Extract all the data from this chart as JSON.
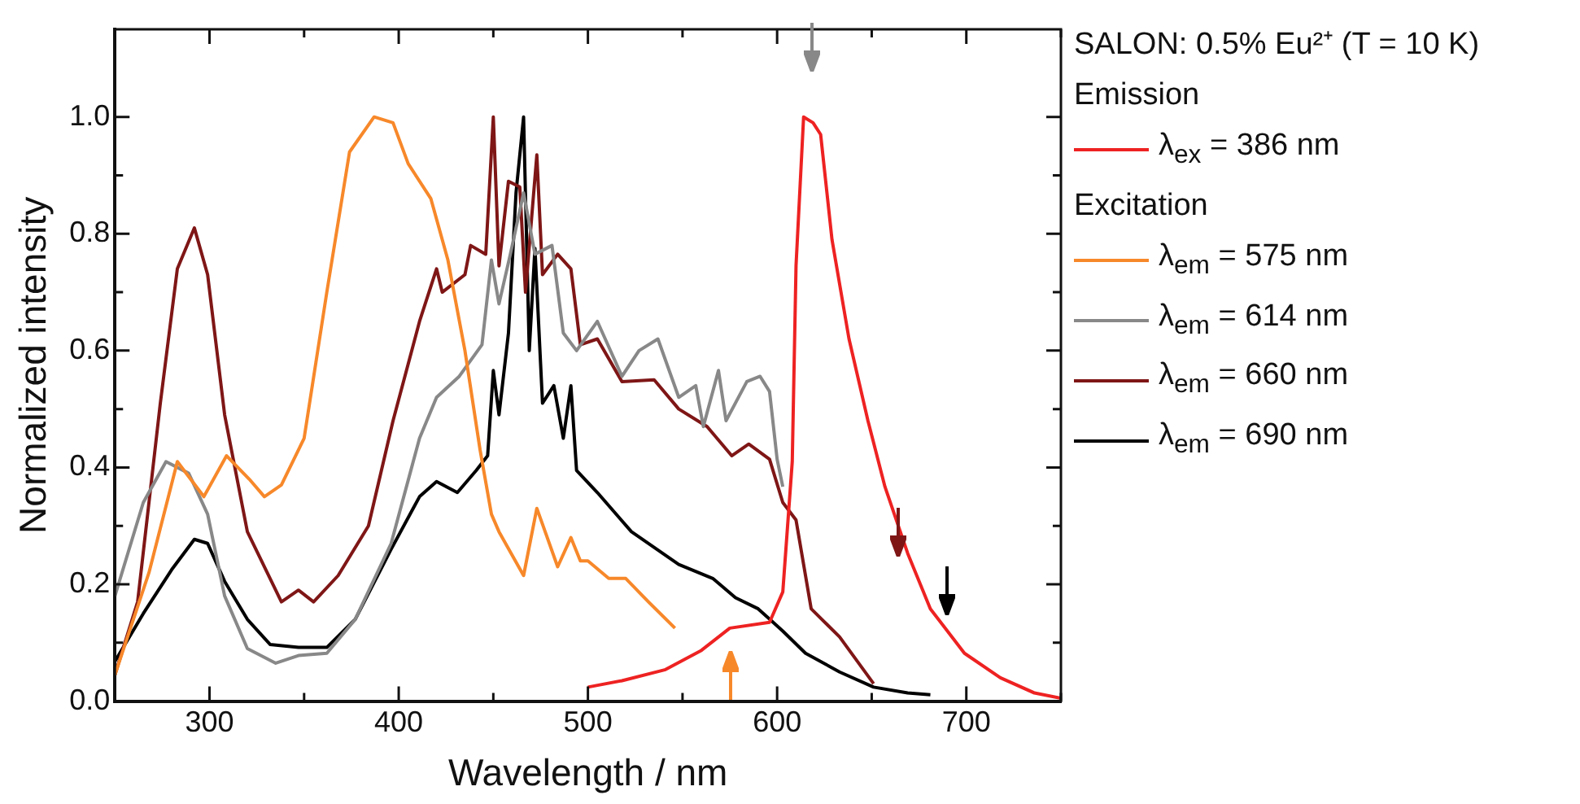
{
  "chart_data": {
    "type": "line",
    "xlabel": "Wavelength / nm",
    "ylabel": "Normalized intensity",
    "legend_title": "SALON: 0.5% Eu²⁺ (T = 10 K)",
    "legend": "right",
    "grid": false,
    "marker": "none",
    "line_style": "solid",
    "xlim": [
      250,
      750
    ],
    "ylim": [
      0,
      1.15
    ],
    "xticks": [
      {
        "value": 250,
        "label": null
      },
      300,
      {
        "value": 350,
        "label": null
      },
      400,
      {
        "value": 450,
        "label": null
      },
      500,
      {
        "value": 550,
        "label": null
      },
      600,
      {
        "value": 650,
        "label": null
      },
      700,
      {
        "value": 750,
        "label": null
      }
    ],
    "yticks": [
      {
        "value": 0,
        "label": "0.0"
      },
      {
        "value": 0.1,
        "label": null
      },
      0.2,
      {
        "value": 0.3,
        "label": null
      },
      0.4,
      {
        "value": 0.5,
        "label": null
      },
      0.6,
      {
        "value": 0.7,
        "label": null
      },
      0.8,
      {
        "value": 0.9,
        "label": null
      },
      {
        "value": 1,
        "label": "1.0"
      }
    ],
    "annotations": [
      "Emission",
      "Excitation"
    ],
    "series": [
      {
        "name": "λ$_{ex}$ = 386 nm",
        "color": "#ee2222",
        "x": [
          500,
          518,
          541,
          560,
          575,
          596,
          603,
          608,
          610,
          614,
          619,
          623,
          629,
          638,
          648,
          657,
          669,
          681,
          699,
          718,
          736,
          750
        ],
        "values": [
          0.024,
          0.035,
          0.054,
          0.087,
          0.125,
          0.135,
          0.187,
          0.41,
          0.746,
          1.0,
          0.99,
          0.97,
          0.79,
          0.62,
          0.48,
          0.367,
          0.253,
          0.158,
          0.082,
          0.04,
          0.014,
          0.005
        ]
      },
      {
        "name": "λ$_{em}$ = 575 nm",
        "color": "#f7882a",
        "x": [
          250,
          268,
          283,
          297,
          309,
          321,
          329,
          338,
          350,
          362,
          374,
          387,
          397,
          405,
          417,
          426,
          435,
          443,
          449,
          453,
          466,
          473,
          484,
          491,
          496,
          500,
          511,
          520,
          532,
          546
        ],
        "values": [
          0.045,
          0.22,
          0.41,
          0.35,
          0.42,
          0.38,
          0.35,
          0.37,
          0.45,
          0.7,
          0.94,
          1.0,
          0.99,
          0.92,
          0.86,
          0.755,
          0.6,
          0.43,
          0.32,
          0.29,
          0.215,
          0.33,
          0.23,
          0.28,
          0.24,
          0.24,
          0.21,
          0.21,
          0.17,
          0.125
        ]
      },
      {
        "name": "λ$_{em}$ = 614 nm",
        "color": "#888888",
        "x": [
          250,
          265,
          277,
          289,
          299,
          308,
          320,
          335,
          347,
          362,
          377,
          396,
          411,
          420,
          432,
          444,
          449,
          453,
          459,
          466,
          472,
          481,
          487,
          494,
          505,
          518,
          527,
          537,
          548,
          557,
          561,
          569,
          573,
          584,
          591,
          596,
          600,
          603
        ],
        "values": [
          0.18,
          0.34,
          0.41,
          0.39,
          0.32,
          0.18,
          0.09,
          0.065,
          0.078,
          0.082,
          0.14,
          0.27,
          0.45,
          0.52,
          0.556,
          0.61,
          0.755,
          0.68,
          0.765,
          0.87,
          0.765,
          0.78,
          0.63,
          0.6,
          0.65,
          0.556,
          0.6,
          0.62,
          0.52,
          0.54,
          0.47,
          0.566,
          0.48,
          0.547,
          0.556,
          0.53,
          0.414,
          0.367
        ]
      },
      {
        "name": "λ$_{em}$ = 660 nm",
        "color": "#7f1616",
        "x": [
          250,
          262,
          274,
          283,
          292,
          299,
          308,
          320,
          338,
          347,
          355,
          368,
          384,
          397,
          411,
          420,
          423,
          435,
          438,
          446,
          450,
          453,
          458,
          464,
          467,
          473,
          476,
          484,
          491,
          496,
          505,
          518,
          535,
          548,
          563,
          576,
          585,
          596,
          603,
          610,
          618,
          633,
          651
        ],
        "values": [
          0.045,
          0.17,
          0.51,
          0.74,
          0.81,
          0.73,
          0.49,
          0.29,
          0.17,
          0.19,
          0.17,
          0.215,
          0.3,
          0.48,
          0.65,
          0.74,
          0.7,
          0.73,
          0.78,
          0.765,
          1.0,
          0.745,
          0.89,
          0.88,
          0.7,
          0.935,
          0.73,
          0.765,
          0.74,
          0.61,
          0.62,
          0.547,
          0.55,
          0.5,
          0.47,
          0.42,
          0.44,
          0.414,
          0.34,
          0.31,
          0.158,
          0.11,
          0.03
        ]
      },
      {
        "name": "λ$_{em}$ = 690 nm",
        "color": "#000000",
        "x": [
          250,
          265,
          280,
          292,
          299,
          308,
          320,
          332,
          347,
          362,
          377,
          396,
          411,
          420,
          431,
          441,
          447,
          450,
          453,
          458,
          462,
          466,
          469,
          472,
          476,
          482,
          487,
          491,
          494,
          505,
          523,
          548,
          566,
          578,
          590,
          603,
          615,
          633,
          651,
          669,
          681
        ],
        "values": [
          0.068,
          0.15,
          0.225,
          0.277,
          0.27,
          0.205,
          0.14,
          0.097,
          0.092,
          0.092,
          0.14,
          0.26,
          0.35,
          0.376,
          0.357,
          0.395,
          0.42,
          0.566,
          0.49,
          0.63,
          0.87,
          1.0,
          0.6,
          0.775,
          0.51,
          0.54,
          0.45,
          0.54,
          0.395,
          0.357,
          0.29,
          0.234,
          0.21,
          0.177,
          0.158,
          0.12,
          0.082,
          0.05,
          0.024,
          0.014,
          0.011
        ]
      }
    ]
  }
}
